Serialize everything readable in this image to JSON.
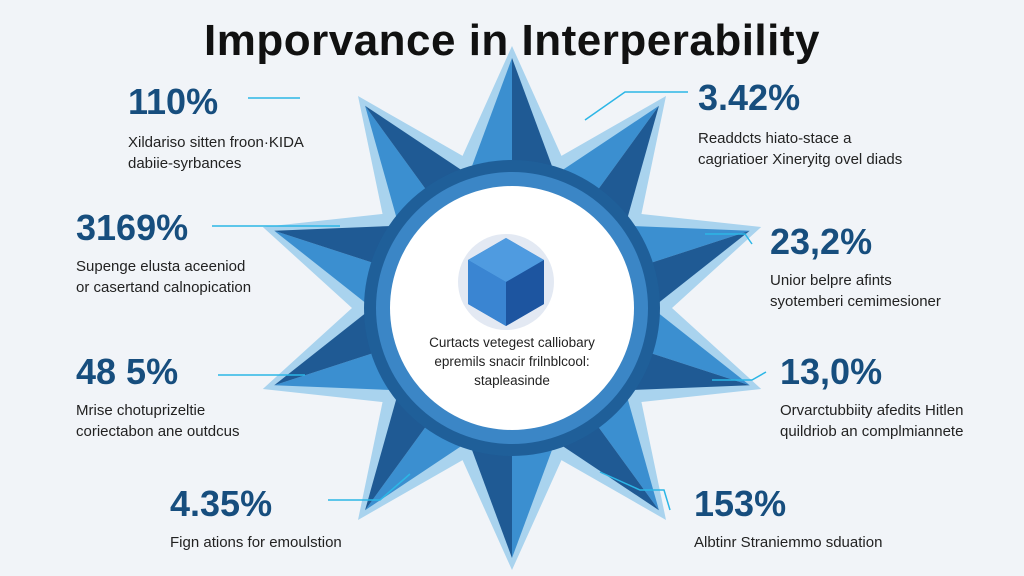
{
  "title": "Imporvance in Interperability",
  "center": {
    "text_lines": [
      "Curtacts vetegest calliobary",
      "epremils snacir frilnblcool:",
      "stapleasinde"
    ],
    "icon": "cube-icon"
  },
  "colors": {
    "value": "#174e7e",
    "arrow": "#2cb6e6",
    "ring": "#1f5f99",
    "spike_light": "#a9d3ee",
    "spike_mid": "#3b8fd0",
    "spike_dark": "#1f5a94"
  },
  "stats": [
    {
      "value": "110%",
      "desc": [
        "Xildariso sitten froon·KIDA",
        "dabiie-syrbances"
      ]
    },
    {
      "value": "3.42%",
      "desc": [
        "Readdcts hiato-stace a",
        "cagriatioer Xineryitg ovel diads"
      ]
    },
    {
      "value": "3169%",
      "desc": [
        "Supenge elusta aceeniod",
        "or casertand calnopication"
      ]
    },
    {
      "value": "23,2%",
      "desc": [
        "Unior belpre afints",
        "syotemberi cemimesioner"
      ]
    },
    {
      "value": "48 5%",
      "desc": [
        "Mrise chotuprizeltie",
        "coriectabon ane outdcus"
      ]
    },
    {
      "value": "13,0%",
      "desc": [
        "Orvarctubbiity afedits Hitlen",
        "quildriob an complmiannete"
      ]
    },
    {
      "value": "4.35%",
      "desc": [
        "Fign ations for emoulstion"
      ]
    },
    {
      "value": "153%",
      "desc": [
        "Albtinr Straniemmo sduation"
      ]
    }
  ]
}
